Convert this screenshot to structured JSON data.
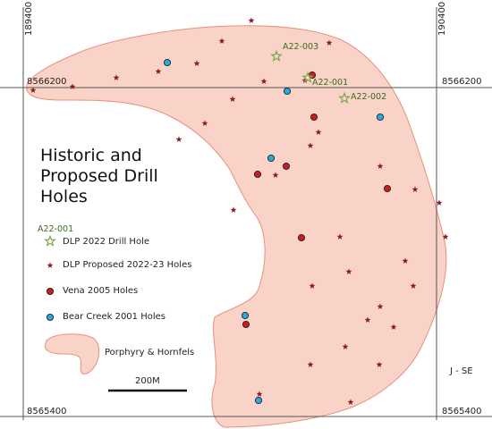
{
  "title": "Historic and Proposed Drill Holes",
  "grid": {
    "easting_left": "189400",
    "easting_right": "190400",
    "northing_top_left": "8566200",
    "northing_top_right": "8566200",
    "northing_bottom_left": "8565400",
    "northing_bottom_right": "8565400"
  },
  "drill_2022_labels": [
    "A22-003",
    "A22-001",
    "A22-002"
  ],
  "legend": {
    "sample_label": "A22-001",
    "drill_2022": "DLP 2022 Drill Hole",
    "proposed": "DLP Proposed 2022-23 Holes",
    "vena": "Vena 2005 Holes",
    "bear_creek": "Bear Creek 2001 Holes",
    "geology": "Porphyry & Hornfels"
  },
  "scale_bar": {
    "label": "200M"
  },
  "section_label": "J - SE",
  "colors": {
    "geology_fill": "#f9d2c8",
    "geology_stroke": "#e8907e",
    "proposed_star": "#8b1a1a",
    "drill_2022_star": "#7aa84b",
    "vena": "#c81d1d",
    "bear_creek": "#27a9e1"
  }
}
